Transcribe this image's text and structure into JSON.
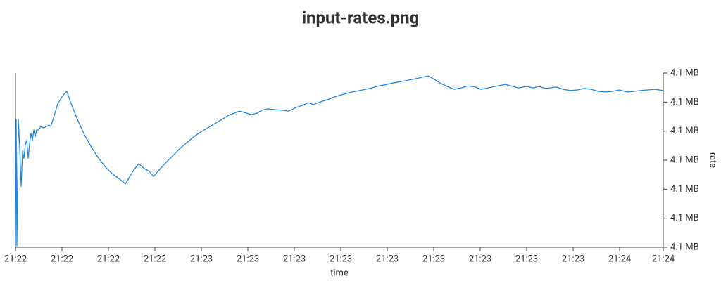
{
  "chart_data": {
    "type": "line",
    "title": "input-rates.png",
    "x_label": "time",
    "y_label": "rate",
    "y_axis_position": "right",
    "xlim": [
      0,
      13.939
    ],
    "ylim": [
      4.097,
      4.103
    ],
    "xticks": [
      {
        "value": 0,
        "label": "21:22"
      },
      {
        "value": 1,
        "label": "21:22"
      },
      {
        "value": 2,
        "label": "21:22"
      },
      {
        "value": 3,
        "label": "21:22"
      },
      {
        "value": 4,
        "label": "21:23"
      },
      {
        "value": 5,
        "label": "21:23"
      },
      {
        "value": 6,
        "label": "21:23"
      },
      {
        "value": 7,
        "label": "21:23"
      },
      {
        "value": 8,
        "label": "21:23"
      },
      {
        "value": 9,
        "label": "21:23"
      },
      {
        "value": 10,
        "label": "21:23"
      },
      {
        "value": 11,
        "label": "21:23"
      },
      {
        "value": 12,
        "label": "21:23"
      },
      {
        "value": 13,
        "label": "21:24"
      },
      {
        "value": 13.939,
        "label": "21:24"
      }
    ],
    "yticks": [
      {
        "value": 4.097,
        "label": "4.1 MB"
      },
      {
        "value": 4.098,
        "label": "4.1 MB"
      },
      {
        "value": 4.099,
        "label": "4.1 MB"
      },
      {
        "value": 4.1,
        "label": "4.1 MB"
      },
      {
        "value": 4.101,
        "label": "4.1 MB"
      },
      {
        "value": 4.102,
        "label": "4.1 MB"
      },
      {
        "value": 4.103,
        "label": "4.1 MB"
      }
    ],
    "series": [
      {
        "name": "rate",
        "color": "#1e88e5",
        "x": [
          0,
          0.015,
          0.03,
          0.061,
          0.091,
          0.121,
          0.152,
          0.182,
          0.212,
          0.242,
          0.273,
          0.303,
          0.333,
          0.364,
          0.394,
          0.424,
          0.455,
          0.5,
          0.545,
          0.606,
          0.667,
          0.727,
          0.758,
          0.818,
          0.909,
          1.03,
          1.106,
          1.182,
          1.333,
          1.485,
          1.636,
          1.788,
          1.939,
          2.091,
          2.242,
          2.364,
          2.47,
          2.545,
          2.652,
          2.773,
          2.879,
          2.97,
          3.076,
          3.227,
          3.379,
          3.53,
          3.682,
          3.833,
          3.985,
          4.136,
          4.288,
          4.439,
          4.591,
          4.742,
          4.818,
          4.97,
          5.076,
          5.197,
          5.303,
          5.424,
          5.576,
          5.727,
          5.879,
          6.03,
          6.182,
          6.303,
          6.409,
          6.561,
          6.712,
          6.864,
          7.015,
          7.167,
          7.318,
          7.47,
          7.621,
          7.773,
          7.924,
          8.076,
          8.227,
          8.379,
          8.53,
          8.682,
          8.879,
          8.985,
          9.136,
          9.288,
          9.439,
          9.591,
          9.742,
          9.894,
          10.015,
          10.167,
          10.318,
          10.545,
          10.697,
          10.818,
          11.0,
          11.136,
          11.258,
          11.409,
          11.636,
          11.788,
          11.939,
          12.091,
          12.242,
          12.394,
          12.545,
          12.697,
          12.848,
          13.0,
          13.152,
          13.303,
          13.455,
          13.606,
          13.758,
          13.939
        ],
        "values": [
          4.09705,
          4.1014,
          4.09705,
          4.1014,
          4.10044,
          4.0991,
          4.10031,
          4.10007,
          4.10056,
          4.10068,
          4.10007,
          4.10056,
          4.10092,
          4.10068,
          4.10104,
          4.1008,
          4.10104,
          4.10104,
          4.10116,
          4.10111,
          4.10116,
          4.10121,
          4.10116,
          4.10145,
          4.10194,
          4.10225,
          4.10237,
          4.10201,
          4.1014,
          4.10087,
          4.10044,
          4.10007,
          4.09976,
          4.09952,
          4.09935,
          4.09918,
          4.09947,
          4.09966,
          4.09988,
          4.09971,
          4.09961,
          4.09944,
          4.09964,
          4.0999,
          4.10014,
          4.10039,
          4.1006,
          4.1008,
          4.10097,
          4.10111,
          4.10126,
          4.1014,
          4.10155,
          4.10164,
          4.10169,
          4.10162,
          4.10157,
          4.10162,
          4.10172,
          4.10177,
          4.10174,
          4.10172,
          4.10169,
          4.10181,
          4.10189,
          4.10198,
          4.10191,
          4.10201,
          4.10208,
          4.10218,
          4.10225,
          4.10232,
          4.10237,
          4.10242,
          4.10247,
          4.10254,
          4.10259,
          4.10264,
          4.10269,
          4.10273,
          4.10278,
          4.10283,
          4.1029,
          4.10281,
          4.10266,
          4.10254,
          4.10244,
          4.10249,
          4.10256,
          4.10252,
          4.10244,
          4.10249,
          4.10254,
          4.10261,
          4.10254,
          4.10249,
          4.10254,
          4.10249,
          4.10254,
          4.10247,
          4.10252,
          4.10244,
          4.1024,
          4.10242,
          4.10247,
          4.10244,
          4.10237,
          4.10235,
          4.10237,
          4.10242,
          4.10235,
          4.10237,
          4.1024,
          4.10242,
          4.10244,
          4.1024
        ]
      }
    ]
  }
}
